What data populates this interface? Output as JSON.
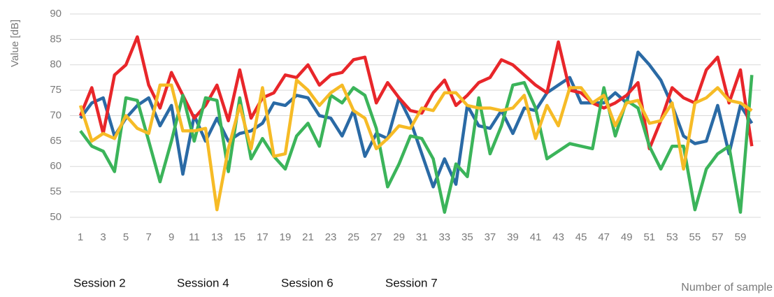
{
  "chart_data": {
    "type": "line",
    "y_label": "Value [dB]",
    "x_label": "Number of sample",
    "categories": [
      1,
      null,
      3,
      null,
      5,
      null,
      7,
      null,
      9,
      null,
      11,
      null,
      13,
      null,
      15,
      null,
      17,
      null,
      19,
      null,
      21,
      null,
      23,
      null,
      25,
      null,
      27,
      null,
      29,
      null,
      31,
      null,
      33,
      null,
      35,
      null,
      37,
      null,
      39,
      null,
      41,
      null,
      43,
      null,
      45,
      null,
      47,
      null,
      49,
      null,
      51,
      null,
      53,
      null,
      55,
      null,
      57,
      null,
      59,
      null
    ],
    "ylim": [
      50,
      90
    ],
    "yticks": [
      50,
      55,
      60,
      65,
      70,
      75,
      80,
      85,
      90
    ],
    "grid": true,
    "series": [
      {
        "name": "Session 2",
        "color": "#2a6aa5",
        "values": [
          69.5,
          72.5,
          73.5,
          66,
          69.5,
          72,
          73.5,
          68,
          72,
          58.5,
          70,
          65,
          69.5,
          65,
          66.5,
          67,
          68.5,
          72.5,
          72,
          74,
          73.5,
          70,
          69.5,
          66,
          71,
          62,
          66.5,
          65.5,
          73.5,
          69,
          62.5,
          56,
          61.5,
          56.5,
          72,
          68,
          67.5,
          71,
          66.5,
          71.5,
          71,
          74.5,
          76,
          77.5,
          72.5,
          72.5,
          72.5,
          74.5,
          72.5,
          82.5,
          80,
          77,
          72,
          66,
          64.5,
          65,
          72,
          62.5,
          72,
          68.5
        ]
      },
      {
        "name": "Session 4",
        "color": "#e8262a",
        "values": [
          70,
          75.5,
          66.5,
          78,
          80,
          85.5,
          76,
          71.5,
          78.5,
          74,
          69.5,
          72,
          76,
          69,
          79,
          69.5,
          73.5,
          74.5,
          78,
          77.5,
          80,
          76,
          78,
          78.5,
          81,
          81.5,
          72.5,
          76.5,
          73.5,
          71,
          70.5,
          74.5,
          77,
          72,
          74,
          76.5,
          77.5,
          81,
          80,
          78,
          76,
          74.5,
          84.5,
          75,
          74.5,
          72.5,
          71.5,
          72.5,
          74,
          76.5,
          63.5,
          69,
          75.5,
          73.5,
          72.5,
          79,
          81.5,
          72.5,
          79,
          64
        ]
      },
      {
        "name": "Session 6",
        "color": "#3bb45a",
        "values": [
          67,
          64,
          63,
          59,
          73.5,
          73,
          65,
          57,
          65,
          74,
          65,
          73.5,
          73,
          59,
          73.5,
          61.5,
          65.5,
          62,
          59.5,
          66,
          68.5,
          64,
          74,
          72.5,
          75.5,
          74,
          67.5,
          56,
          60.5,
          66,
          65.5,
          61.5,
          51,
          60.5,
          58,
          73.5,
          62.5,
          68,
          76,
          76.5,
          71.5,
          61.5,
          63,
          64.5,
          64,
          63.5,
          75.5,
          66,
          73,
          71.5,
          64,
          59.5,
          64,
          64,
          51.5,
          59.5,
          62.5,
          64,
          51,
          78
        ]
      },
      {
        "name": "Session 7",
        "color": "#f6bb26",
        "values": [
          72,
          65,
          66.5,
          65.5,
          70,
          67.5,
          66.5,
          76,
          76,
          67,
          67,
          67.5,
          51.5,
          63.5,
          72,
          63.5,
          75.5,
          62,
          62.5,
          77,
          75,
          72,
          74.5,
          76,
          71,
          69.5,
          63.5,
          65.5,
          68,
          67.5,
          71.5,
          71,
          74.5,
          74.5,
          72,
          71.5,
          71.5,
          71,
          71.5,
          74,
          65.5,
          72,
          68,
          75.5,
          75.5,
          72.5,
          74,
          68,
          72.5,
          73,
          68.5,
          69,
          72.5,
          59.5,
          72.5,
          73.5,
          75.5,
          73,
          72.5,
          71
        ]
      }
    ]
  }
}
